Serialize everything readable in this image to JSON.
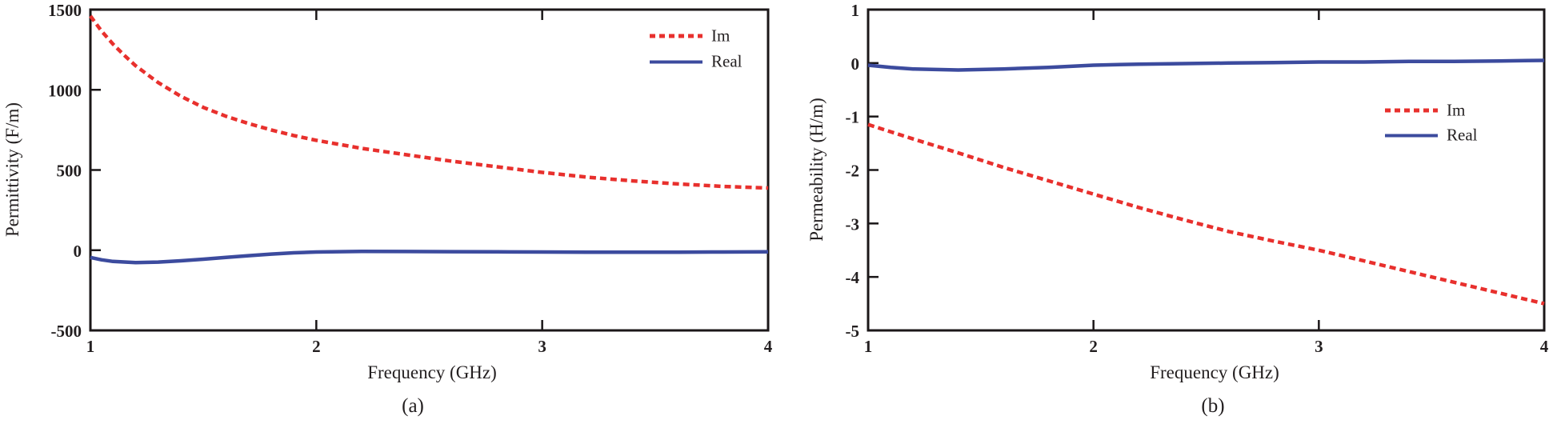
{
  "figure": {
    "background": "#ffffff",
    "text_color": "#231f20",
    "axis_color": "#1b1718"
  },
  "chart_data": [
    {
      "id": "permittivity-plot",
      "type": "line",
      "title": "",
      "xlabel": "Frequency (GHz)",
      "ylabel": "Permittivity (F/m)",
      "caption": "(a)",
      "xlim": [
        1,
        4
      ],
      "ylim": [
        -500,
        1500
      ],
      "xticks": [
        "1",
        "2",
        "3",
        "4"
      ],
      "xtick_values": [
        1,
        2,
        3,
        4
      ],
      "yticks": [
        "1500",
        "1000",
        "500",
        "0",
        "-500"
      ],
      "ytick_values": [
        1500,
        1000,
        500,
        0,
        -500
      ],
      "grid": false,
      "legend_position": "upper-right-inside",
      "series": [
        {
          "name": "Im",
          "style": "dashed",
          "color": "#e8302d",
          "x": [
            1.0,
            1.05,
            1.1,
            1.15,
            1.2,
            1.3,
            1.4,
            1.5,
            1.6,
            1.7,
            1.8,
            1.9,
            2.0,
            2.2,
            2.4,
            2.6,
            2.8,
            3.0,
            3.2,
            3.4,
            3.6,
            3.8,
            4.0
          ],
          "y": [
            1460,
            1365,
            1285,
            1215,
            1150,
            1045,
            960,
            890,
            835,
            790,
            750,
            715,
            685,
            635,
            595,
            555,
            520,
            485,
            455,
            432,
            413,
            398,
            388
          ]
        },
        {
          "name": "Real",
          "style": "solid",
          "color": "#3c4b9e",
          "x": [
            1.0,
            1.05,
            1.1,
            1.2,
            1.3,
            1.4,
            1.5,
            1.6,
            1.7,
            1.8,
            1.9,
            2.0,
            2.2,
            2.4,
            2.6,
            2.8,
            3.0,
            3.2,
            3.4,
            3.6,
            3.8,
            4.0
          ],
          "y": [
            -45,
            -60,
            -70,
            -77,
            -74,
            -66,
            -56,
            -45,
            -34,
            -24,
            -16,
            -11,
            -7,
            -8,
            -9,
            -10,
            -11,
            -12,
            -12,
            -12,
            -11,
            -10
          ]
        }
      ]
    },
    {
      "id": "permeability-plot",
      "type": "line",
      "title": "",
      "xlabel": "Frequency (GHz)",
      "ylabel": "Permeability (H/m)",
      "caption": "(b)",
      "xlim": [
        1,
        4
      ],
      "ylim": [
        -5,
        1
      ],
      "xticks": [
        "1",
        "2",
        "3",
        "4"
      ],
      "xtick_values": [
        1,
        2,
        3,
        4
      ],
      "yticks": [
        "1",
        "0",
        "-1",
        "-2",
        "-3",
        "-4",
        "-5"
      ],
      "ytick_values": [
        1,
        0,
        -1,
        -2,
        -3,
        -4,
        -5
      ],
      "grid": false,
      "legend_position": "right-inside",
      "series": [
        {
          "name": "Im",
          "style": "dashed",
          "color": "#e8302d",
          "x": [
            1.0,
            1.2,
            1.4,
            1.6,
            1.8,
            2.0,
            2.2,
            2.4,
            2.6,
            2.8,
            3.0,
            3.2,
            3.4,
            3.6,
            3.8,
            4.0
          ],
          "y": [
            -1.15,
            -1.42,
            -1.68,
            -1.95,
            -2.2,
            -2.45,
            -2.7,
            -2.93,
            -3.15,
            -3.33,
            -3.5,
            -3.7,
            -3.9,
            -4.1,
            -4.3,
            -4.5
          ]
        },
        {
          "name": "Real",
          "style": "solid",
          "color": "#3c4b9e",
          "x": [
            1.0,
            1.1,
            1.2,
            1.4,
            1.6,
            1.8,
            2.0,
            2.2,
            2.4,
            2.6,
            2.8,
            3.0,
            3.2,
            3.4,
            3.6,
            3.8,
            4.0
          ],
          "y": [
            -0.04,
            -0.08,
            -0.11,
            -0.13,
            -0.11,
            -0.08,
            -0.04,
            -0.02,
            -0.01,
            0.0,
            0.01,
            0.02,
            0.02,
            0.03,
            0.03,
            0.04,
            0.05
          ]
        }
      ]
    }
  ]
}
